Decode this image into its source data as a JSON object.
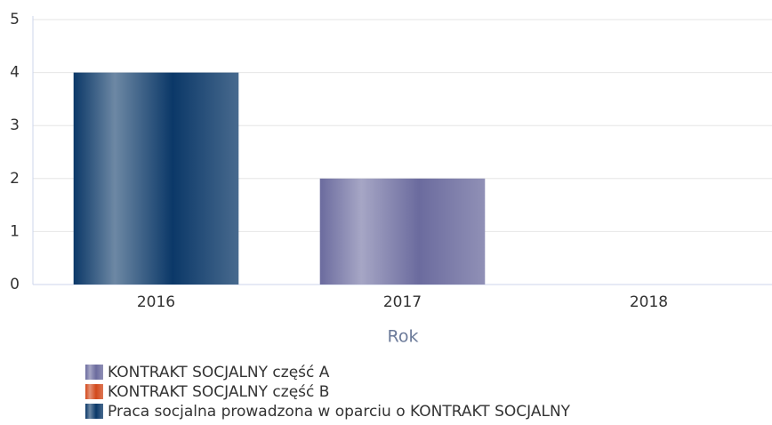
{
  "chart_data": {
    "type": "bar",
    "stacked": true,
    "categories": [
      "2016",
      "2017",
      "2018"
    ],
    "x_label": "Rok",
    "series": [
      {
        "name": "KONTRAKT SOCJALNY część A",
        "color": "#6b6b9e",
        "values": [
          0,
          2,
          0
        ]
      },
      {
        "name": "KONTRAKT SOCJALNY część B",
        "color": "#d2491c",
        "values": [
          0,
          0,
          0
        ]
      },
      {
        "name": "Praca socjalna prowadzona w oparciu o KONTRAKT SOCJALNY",
        "color": "#0b3868",
        "values": [
          4,
          0,
          0
        ]
      }
    ],
    "ylim": [
      0,
      5
    ],
    "yticks": [
      0,
      1,
      2,
      3,
      4,
      5
    ],
    "grid": true
  }
}
